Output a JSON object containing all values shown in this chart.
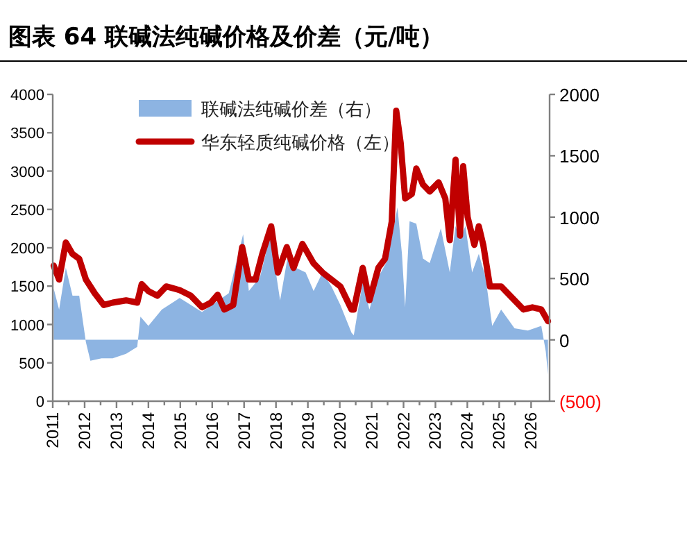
{
  "chart_data": {
    "type": "line",
    "title": "图表 64 联碱法纯碱价格及价差（元/吨）",
    "xlim": [
      2011,
      2026.58
    ],
    "xticks": [
      2011,
      2012,
      2013,
      2014,
      2015,
      2016,
      2017,
      2018,
      2019,
      2020,
      2021,
      2022,
      2023,
      2024,
      2025,
      2026
    ],
    "ylim": [
      0,
      4000
    ],
    "yticks": [
      0,
      500,
      1000,
      1500,
      2000,
      2500,
      3000,
      3500,
      4000
    ],
    "y2lim": [
      -500,
      2000
    ],
    "y2ticks": [
      {
        "value": -500,
        "label": "(500)"
      },
      0,
      500,
      1000,
      1500,
      2000
    ],
    "legend": "top",
    "grid": false,
    "series": [
      {
        "name": "联碱法纯碱价差（右）",
        "type": "area",
        "axis": "y2",
        "color": "#8db4e2",
        "x": [
          2011.03,
          2011.2,
          2011.41,
          2011.62,
          2011.83,
          2012.04,
          2012.18,
          2012.53,
          2012.88,
          2013.3,
          2013.65,
          2013.75,
          2014.0,
          2014.42,
          2014.98,
          2015.68,
          2016.1,
          2016.52,
          2016.97,
          2017.15,
          2017.5,
          2017.82,
          2018.13,
          2018.41,
          2018.62,
          2018.93,
          2019.18,
          2019.46,
          2019.74,
          2020.02,
          2020.37,
          2020.44,
          2020.72,
          2020.93,
          2021.21,
          2021.49,
          2021.7,
          2021.81,
          2021.95,
          2022.05,
          2022.19,
          2022.4,
          2022.61,
          2022.82,
          2023.17,
          2023.45,
          2023.63,
          2023.77,
          2023.94,
          2024.15,
          2024.36,
          2024.57,
          2024.78,
          2025.06,
          2025.48,
          2025.9,
          2026.32,
          2026.46,
          2026.53
        ],
        "values": [
          417,
          246,
          587,
          360,
          360,
          -19,
          -170,
          -151,
          -151,
          -114,
          -57,
          189,
          114,
          246,
          341,
          227,
          303,
          379,
          860,
          398,
          511,
          852,
          322,
          738,
          587,
          549,
          398,
          549,
          435,
          284,
          57,
          38,
          473,
          246,
          511,
          644,
          928,
          1079,
          701,
          265,
          966,
          946,
          662,
          625,
          909,
          549,
          928,
          815,
          928,
          549,
          701,
          511,
          114,
          246,
          94,
          76,
          114,
          -94,
          -284
        ]
      },
      {
        "name": "华东轻质纯碱价格（左）",
        "axis": "y",
        "color": "#c00000",
        "x": [
          2011.03,
          2011.2,
          2011.41,
          2011.62,
          2011.83,
          2012.04,
          2012.32,
          2012.6,
          2012.88,
          2013.3,
          2013.65,
          2013.79,
          2014.0,
          2014.28,
          2014.56,
          2014.98,
          2015.33,
          2015.68,
          2015.96,
          2016.17,
          2016.38,
          2016.66,
          2016.94,
          2017.15,
          2017.36,
          2017.57,
          2017.85,
          2018.06,
          2018.34,
          2018.55,
          2018.83,
          2019.18,
          2019.46,
          2019.74,
          2020.02,
          2020.37,
          2020.44,
          2020.72,
          2020.93,
          2021.21,
          2021.42,
          2021.63,
          2021.77,
          2021.91,
          2022.05,
          2022.26,
          2022.4,
          2022.61,
          2022.82,
          2023.1,
          2023.31,
          2023.45,
          2023.63,
          2023.77,
          2023.87,
          2024.01,
          2024.22,
          2024.36,
          2024.5,
          2024.71,
          2025.06,
          2025.48,
          2025.76,
          2026.04,
          2026.32,
          2026.53
        ],
        "values": [
          1767,
          1586,
          2069,
          1919,
          1857,
          1586,
          1405,
          1254,
          1285,
          1315,
          1285,
          1526,
          1435,
          1375,
          1496,
          1448,
          1375,
          1224,
          1285,
          1387,
          1195,
          1254,
          2009,
          1586,
          1586,
          1919,
          2281,
          1677,
          2009,
          1738,
          2051,
          1797,
          1677,
          1586,
          1496,
          1195,
          1195,
          1738,
          1315,
          1738,
          1857,
          2341,
          3788,
          3367,
          2643,
          2702,
          3034,
          2824,
          2733,
          2853,
          2643,
          2100,
          3149,
          2159,
          3064,
          2400,
          2038,
          2281,
          2038,
          1496,
          1496,
          1315,
          1195,
          1224,
          1195,
          1043
        ]
      }
    ]
  }
}
